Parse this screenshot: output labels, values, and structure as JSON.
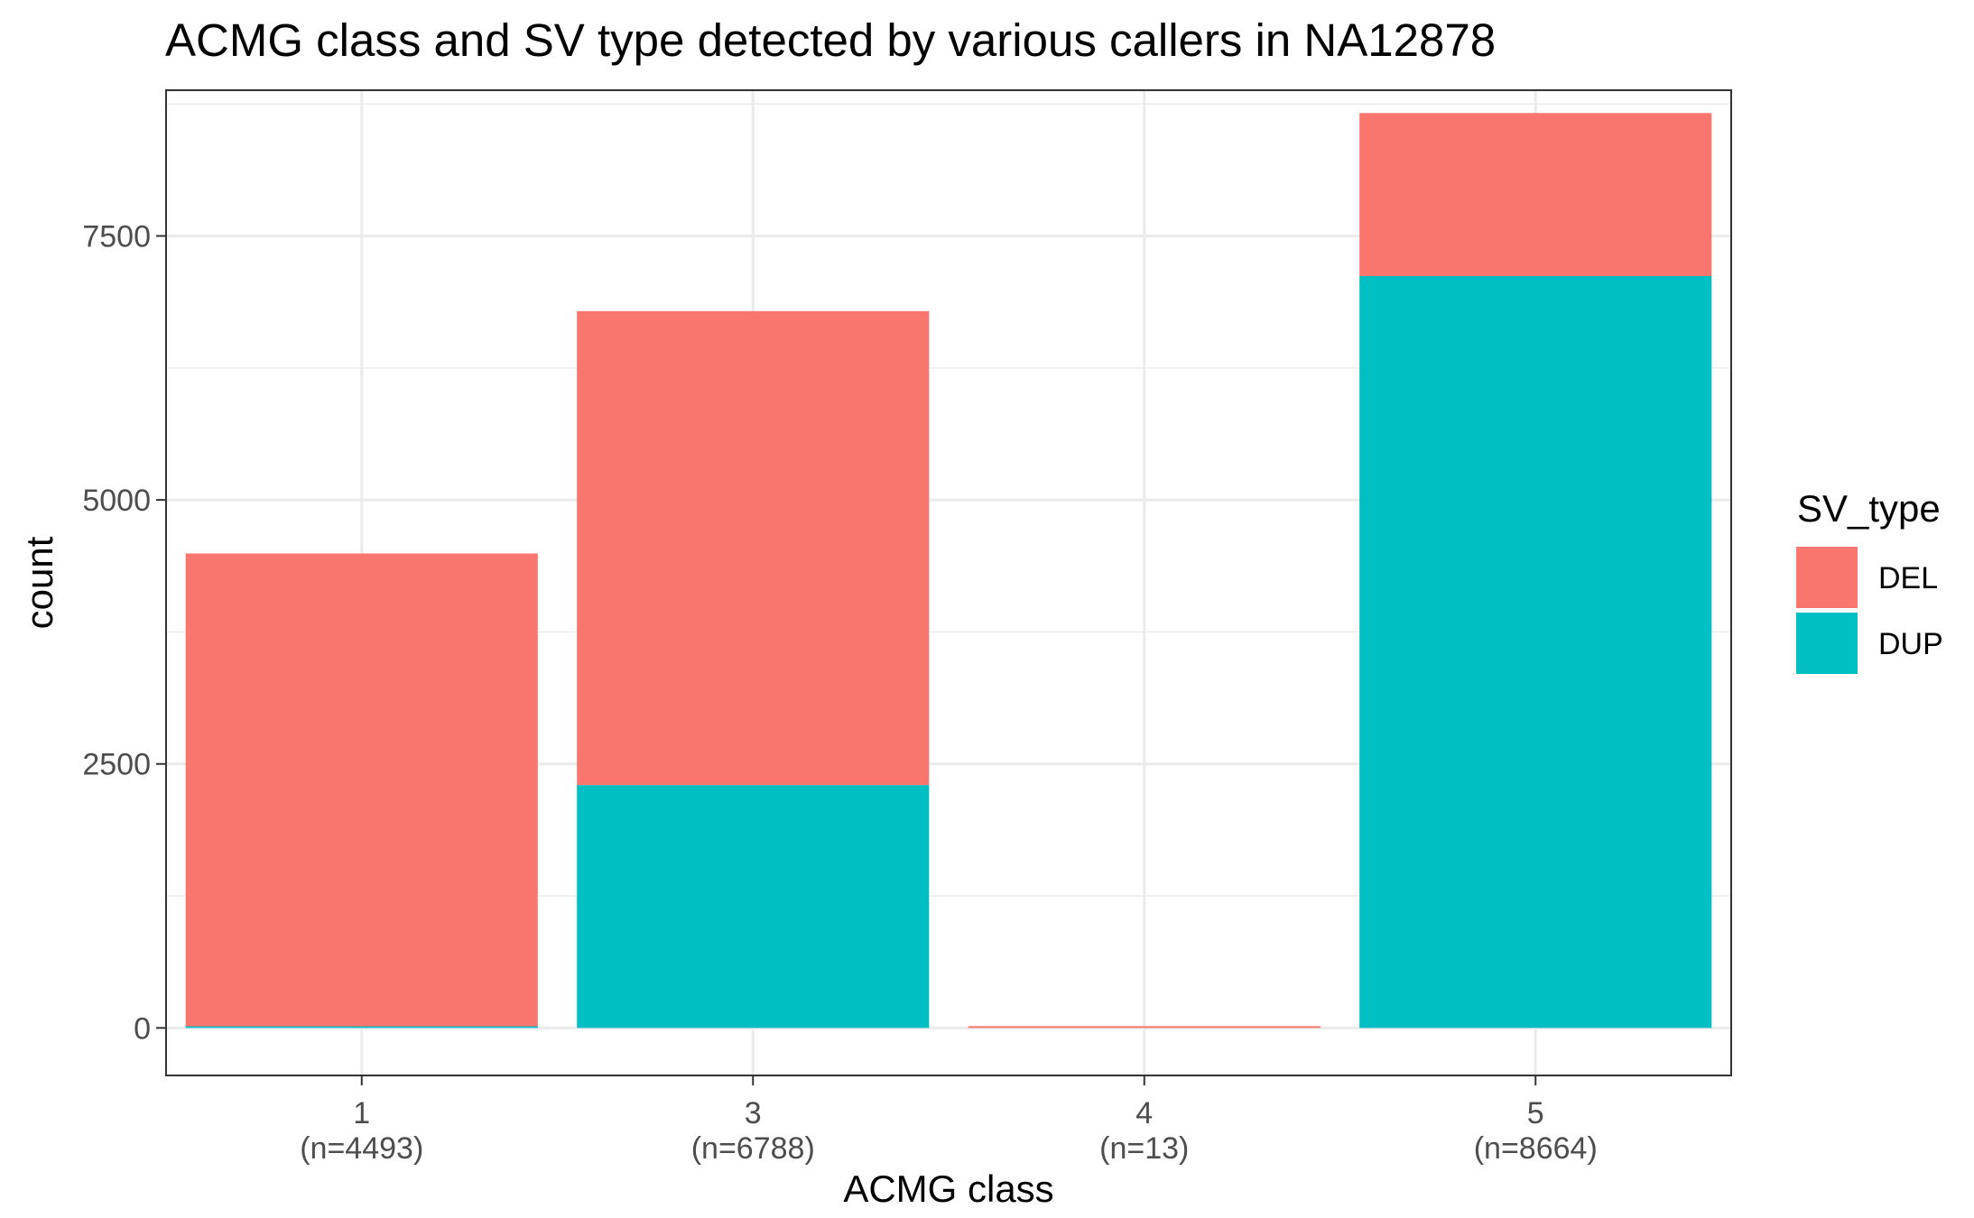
{
  "chart_data": {
    "type": "bar",
    "stacked": true,
    "title": "ACMG class and SV type detected by various callers in NA12878",
    "xlabel": "ACMG class",
    "ylabel": "count",
    "categories": [
      "1",
      "3",
      "4",
      "5"
    ],
    "category_sublabels": [
      "(n=4493)",
      "(n=6788)",
      "(n=13)",
      "(n=8664)"
    ],
    "series": [
      {
        "name": "DUP",
        "color": "#00BFC4",
        "values": [
          15,
          2300,
          0,
          7120
        ]
      },
      {
        "name": "DEL",
        "color": "#F8766D",
        "values": [
          4478,
          4488,
          13,
          1544
        ]
      }
    ],
    "stack_order_bottom_to_top": [
      "DUP",
      "DEL"
    ],
    "ylim": [
      -450,
      8880
    ],
    "yticks": [
      0,
      2500,
      5000,
      7500
    ],
    "ytick_labels": [
      "0",
      "2500",
      "5000",
      "7500"
    ],
    "grid": true,
    "legend": {
      "title": "SV_type",
      "position": "right",
      "items": [
        {
          "label": "DEL",
          "color": "#F8766D"
        },
        {
          "label": "DUP",
          "color": "#00BFC4"
        }
      ]
    }
  }
}
